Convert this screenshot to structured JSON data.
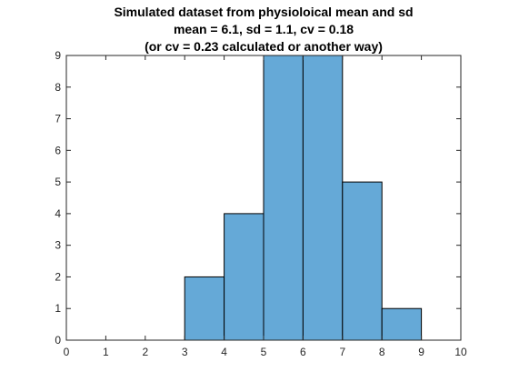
{
  "chart_data": {
    "type": "bar",
    "title_lines": [
      "Simulated dataset from physioloical mean and sd",
      "mean = 6.1, sd = 1.1, cv = 0.18",
      "(or cv = 0.23 calculated or another way)"
    ],
    "xlabel": "",
    "ylabel": "",
    "bins": [
      {
        "start": 3,
        "end": 4,
        "count": 2
      },
      {
        "start": 4,
        "end": 5,
        "count": 4
      },
      {
        "start": 5,
        "end": 6,
        "count": 9
      },
      {
        "start": 6,
        "end": 7,
        "count": 9
      },
      {
        "start": 7,
        "end": 8,
        "count": 5
      },
      {
        "start": 8,
        "end": 9,
        "count": 1
      }
    ],
    "xlim": [
      0,
      10
    ],
    "ylim": [
      0,
      9
    ],
    "x_ticks": [
      "0",
      "1",
      "2",
      "3",
      "4",
      "5",
      "6",
      "7",
      "8",
      "9",
      "10"
    ],
    "y_ticks": [
      "0",
      "1",
      "2",
      "3",
      "4",
      "5",
      "6",
      "7",
      "8",
      "9"
    ],
    "grid": false,
    "bar_color": "#65a9d7",
    "edge_color": "#000000"
  }
}
